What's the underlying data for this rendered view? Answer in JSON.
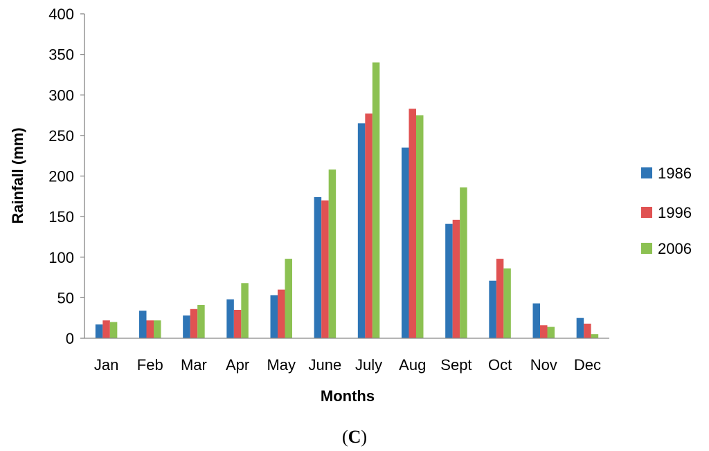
{
  "chart_data": {
    "type": "bar",
    "xlabel": "Months",
    "ylabel": "Rainfall (mm)",
    "ylim": [
      0,
      400
    ],
    "yticks": [
      0,
      50,
      100,
      150,
      200,
      250,
      300,
      350,
      400
    ],
    "grid": false,
    "legend_position": "right",
    "categories": [
      "Jan",
      "Feb",
      "Mar",
      "Apr",
      "May",
      "June",
      "July",
      "Aug",
      "Sept",
      "Oct",
      "Nov",
      "Dec"
    ],
    "series": [
      {
        "name": "1986",
        "color": "#2e75b6",
        "values": [
          17,
          34,
          28,
          48,
          53,
          174,
          265,
          235,
          141,
          71,
          43,
          25
        ]
      },
      {
        "name": "1996",
        "color": "#e05252",
        "values": [
          22,
          22,
          36,
          35,
          60,
          170,
          277,
          283,
          146,
          98,
          16,
          18
        ]
      },
      {
        "name": "2006",
        "color": "#8cc152",
        "values": [
          20,
          22,
          41,
          68,
          98,
          208,
          340,
          275,
          186,
          86,
          14,
          5
        ]
      }
    ]
  },
  "figure": {
    "panel_label_open": "(",
    "panel_label_letter": "C",
    "panel_label_close": ")"
  }
}
